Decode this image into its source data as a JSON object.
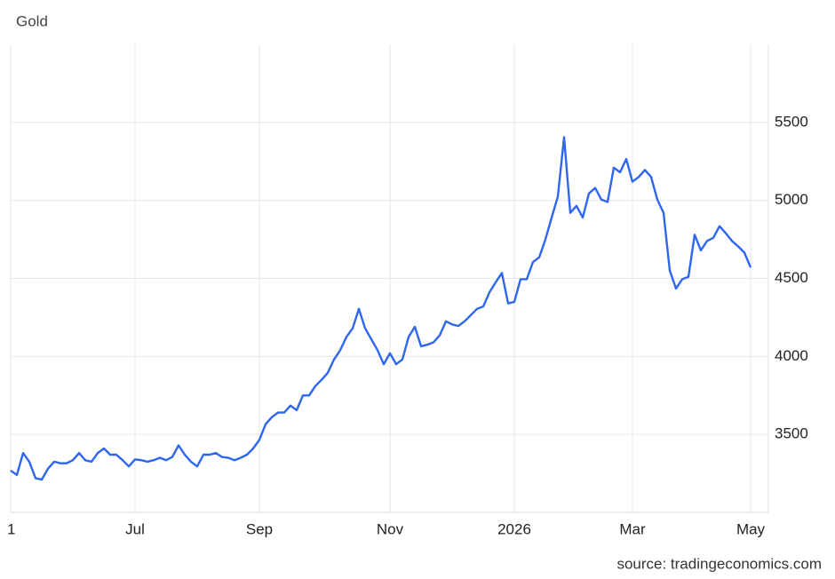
{
  "chart_data": {
    "type": "line",
    "title": "Gold",
    "source": "source: tradingeconomics.com",
    "categories": [
      "1",
      null,
      null,
      null,
      null,
      null,
      null,
      null,
      null,
      null,
      null,
      null,
      null,
      null,
      null,
      null,
      null,
      null,
      null,
      null,
      "Jul",
      null,
      null,
      null,
      null,
      null,
      null,
      null,
      null,
      null,
      null,
      null,
      null,
      null,
      null,
      null,
      null,
      null,
      null,
      null,
      "Sep",
      null,
      null,
      null,
      null,
      null,
      null,
      null,
      null,
      null,
      null,
      null,
      null,
      null,
      null,
      null,
      null,
      null,
      null,
      null,
      null,
      "Nov",
      null,
      null,
      null,
      null,
      null,
      null,
      null,
      null,
      null,
      null,
      null,
      null,
      null,
      null,
      null,
      null,
      null,
      null,
      null,
      "2026",
      null,
      null,
      null,
      null,
      null,
      null,
      null,
      null,
      null,
      null,
      null,
      null,
      null,
      null,
      null,
      null,
      null,
      null,
      "Mar",
      null,
      null,
      null,
      null,
      null,
      null,
      null,
      null,
      null,
      null,
      null,
      null,
      null,
      null,
      null,
      null,
      null,
      null,
      "May"
    ],
    "values": [
      3268,
      3240,
      3380,
      3325,
      3220,
      3210,
      3280,
      3325,
      3315,
      3315,
      3335,
      3380,
      3335,
      3325,
      3380,
      3410,
      3370,
      3370,
      3335,
      3295,
      3340,
      3335,
      3325,
      3335,
      3350,
      3335,
      3355,
      3430,
      3370,
      3325,
      3295,
      3370,
      3370,
      3380,
      3355,
      3350,
      3335,
      3350,
      3370,
      3410,
      3465,
      3565,
      3610,
      3640,
      3640,
      3685,
      3655,
      3750,
      3750,
      3810,
      3850,
      3895,
      3980,
      4040,
      4125,
      4180,
      4305,
      4180,
      4110,
      4040,
      3950,
      4020,
      3950,
      3980,
      4125,
      4190,
      4065,
      4075,
      4090,
      4135,
      4225,
      4205,
      4195,
      4225,
      4265,
      4305,
      4320,
      4410,
      4475,
      4535,
      4340,
      4350,
      4495,
      4495,
      4605,
      4635,
      4750,
      4890,
      5025,
      5405,
      4920,
      4965,
      4890,
      5045,
      5080,
      5005,
      4990,
      5210,
      5180,
      5265,
      5120,
      5150,
      5195,
      5150,
      5005,
      4920,
      4550,
      4435,
      4495,
      4510,
      4780,
      4680,
      4740,
      4760,
      4835,
      4790,
      4740,
      4705,
      4665,
      4570
    ],
    "color": "#2f66f0",
    "ylim": [
      3000,
      6000
    ],
    "yticks": [
      3500,
      4000,
      4500,
      5000,
      5500
    ],
    "grid": true
  }
}
